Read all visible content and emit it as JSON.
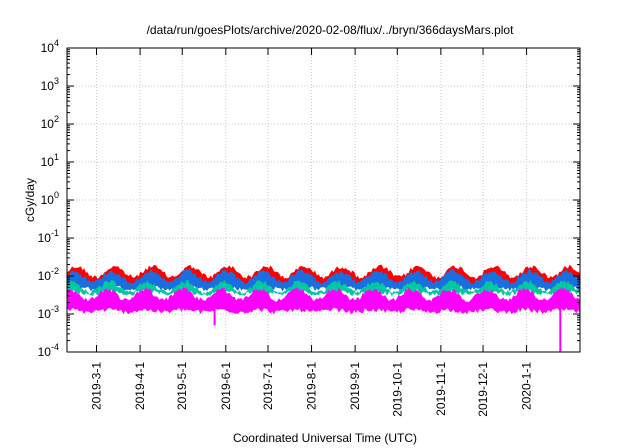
{
  "chart_data": {
    "type": "area",
    "title": "/data/run/goesPlots/archive/2020-02-08/flux/../bryn/366daysMars.plot",
    "xlabel": "Coordinated Universal Time (UTC)",
    "ylabel": "cGy/day",
    "yscale": "log",
    "ylim": [
      0.0001,
      10000
    ],
    "xlim": [
      "2019-02-08",
      "2020-02-08"
    ],
    "grid": true,
    "y_ticks": [
      {
        "base": "10",
        "exp": "-4"
      },
      {
        "base": "10",
        "exp": "-3"
      },
      {
        "base": "10",
        "exp": "-2"
      },
      {
        "base": "10",
        "exp": "-1"
      },
      {
        "base": "10",
        "exp": "0"
      },
      {
        "base": "10",
        "exp": "1"
      },
      {
        "base": "10",
        "exp": "2"
      },
      {
        "base": "10",
        "exp": "3"
      },
      {
        "base": "10",
        "exp": "4"
      }
    ],
    "x_ticks": [
      "2019-3-1",
      "2019-4-1",
      "2019-5-1",
      "2019-6-1",
      "2019-7-1",
      "2019-8-1",
      "2019-9-1",
      "2019-10-1",
      "2019-11-1",
      "2019-12-1",
      "2020-1-1"
    ],
    "x_tick_dates": [
      "2019-03-01",
      "2019-04-01",
      "2019-05-01",
      "2019-06-01",
      "2019-07-01",
      "2019-08-01",
      "2019-09-01",
      "2019-10-01",
      "2019-11-01",
      "2019-12-01",
      "2020-01-01"
    ],
    "series": [
      {
        "color": "#ff0000",
        "approx_range": [
          0.005,
          0.02
        ]
      },
      {
        "color": "#1a6fe0",
        "approx_range": [
          0.004,
          0.015
        ]
      },
      {
        "color": "#00c8a0",
        "approx_range": [
          0.003,
          0.008
        ]
      },
      {
        "color": "#ff00ff",
        "approx_range": [
          0.001,
          0.005
        ]
      }
    ],
    "dips": [
      {
        "date": "2019-05-24",
        "value": 0.0005
      },
      {
        "date": "2020-01-25",
        "value": 0.0001
      }
    ]
  }
}
